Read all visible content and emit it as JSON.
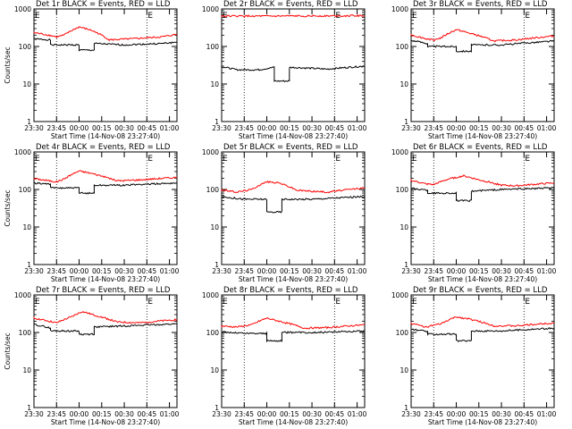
{
  "chart_data": [
    {
      "type": "line",
      "title": "Det 1r BLACK = Events, RED = LLD",
      "ylabel": "Counts/sec",
      "xlabel": "Start Time (14-Nov-08 23:27:40)",
      "x_ticks": [
        "23:30",
        "23:45",
        "00:00",
        "00:15",
        "00:30",
        "00:45",
        "01:00"
      ],
      "y_ticks": [
        "1",
        "10",
        "100",
        "1000"
      ],
      "markers": [
        {
          "label": "E",
          "t": "23:30"
        },
        {
          "label": "E",
          "t": "00:45"
        }
      ],
      "event_lines": [
        "23:45",
        "00:45"
      ],
      "yscale": "log",
      "ylim": [
        1,
        1000
      ],
      "series": [
        {
          "name": "BLACK = Events",
          "color": "#000000",
          "values": [
            [
              -2,
              160
            ],
            [
              11,
              150
            ],
            [
              11,
              110
            ],
            [
              30,
              110
            ],
            [
              30,
              80
            ],
            [
              40,
              80
            ],
            [
              40,
              120
            ],
            [
              60,
              110
            ],
            [
              85,
              120
            ],
            [
              95,
              130
            ]
          ]
        },
        {
          "name": "RED = LLD",
          "color": "#ff0000",
          "values": [
            [
              -2,
              240
            ],
            [
              10,
              200
            ],
            [
              15,
              180
            ],
            [
              20,
              200
            ],
            [
              30,
              330
            ],
            [
              38,
              270
            ],
            [
              50,
              150
            ],
            [
              65,
              160
            ],
            [
              85,
              180
            ],
            [
              95,
              210
            ]
          ]
        }
      ]
    },
    {
      "type": "line",
      "title": "Det 2r BLACK = Events, RED = LLD",
      "ylabel": "",
      "xlabel": "Start Time (14-Nov-08 23:27:40)",
      "x_ticks": [
        "23:30",
        "23:45",
        "00:00",
        "00:15",
        "00:30",
        "00:45",
        "01:00"
      ],
      "y_ticks": [
        "1",
        "10",
        "100",
        "1000"
      ],
      "markers": [
        {
          "label": "E",
          "t": "23:30"
        },
        {
          "label": "E",
          "t": "00:45"
        }
      ],
      "event_lines": [
        "23:45",
        "00:45"
      ],
      "yscale": "log",
      "ylim": [
        1,
        1000
      ],
      "series": [
        {
          "name": "BLACK = Events",
          "color": "#000000",
          "values": [
            [
              -2,
              30
            ],
            [
              10,
              24
            ],
            [
              25,
              24
            ],
            [
              35,
              28
            ],
            [
              35,
              12
            ],
            [
              45,
              12
            ],
            [
              45,
              28
            ],
            [
              70,
              25
            ],
            [
              95,
              30
            ]
          ]
        },
        {
          "name": "RED = LLD",
          "color": "#ff0000",
          "values": [
            [
              -2,
              650
            ],
            [
              30,
              640
            ],
            [
              60,
              650
            ],
            [
              95,
              660
            ]
          ]
        }
      ]
    },
    {
      "type": "line",
      "title": "Det 3r BLACK = Events, RED = LLD",
      "ylabel": "",
      "xlabel": "Start Time (14-Nov-08 23:27:40)",
      "x_ticks": [
        "23:30",
        "23:45",
        "00:00",
        "00:15",
        "00:30",
        "00:45",
        "01:00"
      ],
      "y_ticks": [
        "1",
        "10",
        "100",
        "1000"
      ],
      "markers": [
        {
          "label": "E",
          "t": "23:30"
        },
        {
          "label": "E",
          "t": "00:45"
        }
      ],
      "event_lines": [
        "23:45",
        "00:45"
      ],
      "yscale": "log",
      "ylim": [
        1,
        1000
      ],
      "series": [
        {
          "name": "BLACK = Events",
          "color": "#000000",
          "values": [
            [
              -2,
              150
            ],
            [
              11,
              120
            ],
            [
              11,
              100
            ],
            [
              30,
              100
            ],
            [
              30,
              75
            ],
            [
              40,
              75
            ],
            [
              40,
              110
            ],
            [
              60,
              110
            ],
            [
              95,
              140
            ]
          ]
        },
        {
          "name": "RED = LLD",
          "color": "#ff0000",
          "values": [
            [
              -2,
              210
            ],
            [
              10,
              160
            ],
            [
              15,
              150
            ],
            [
              20,
              170
            ],
            [
              30,
              280
            ],
            [
              38,
              230
            ],
            [
              55,
              140
            ],
            [
              70,
              150
            ],
            [
              95,
              190
            ]
          ]
        }
      ]
    },
    {
      "type": "line",
      "title": "Det 4r BLACK = Events, RED = LLD",
      "ylabel": "Counts/sec",
      "xlabel": "Start Time (14-Nov-08 23:27:40)",
      "x_ticks": [
        "23:30",
        "23:45",
        "00:00",
        "00:15",
        "00:30",
        "00:45",
        "01:00"
      ],
      "y_ticks": [
        "1",
        "10",
        "100",
        "1000"
      ],
      "markers": [
        {
          "label": "E",
          "t": "23:30"
        },
        {
          "label": "E",
          "t": "00:45"
        }
      ],
      "event_lines": [
        "23:45",
        "00:45"
      ],
      "yscale": "log",
      "ylim": [
        1,
        1000
      ],
      "series": [
        {
          "name": "BLACK = Events",
          "color": "#000000",
          "values": [
            [
              -2,
              150
            ],
            [
              11,
              140
            ],
            [
              11,
              110
            ],
            [
              30,
              110
            ],
            [
              30,
              80
            ],
            [
              40,
              80
            ],
            [
              40,
              130
            ],
            [
              60,
              130
            ],
            [
              95,
              150
            ]
          ]
        },
        {
          "name": "RED = LLD",
          "color": "#ff0000",
          "values": [
            [
              -2,
              200
            ],
            [
              10,
              170
            ],
            [
              15,
              160
            ],
            [
              20,
              190
            ],
            [
              30,
              310
            ],
            [
              38,
              270
            ],
            [
              55,
              170
            ],
            [
              70,
              180
            ],
            [
              95,
              210
            ]
          ]
        }
      ]
    },
    {
      "type": "line",
      "title": "Det 5r BLACK = Events, RED = LLD",
      "ylabel": "",
      "xlabel": "Start Time (14-Nov-08 23:27:40)",
      "x_ticks": [
        "23:30",
        "23:45",
        "00:00",
        "00:15",
        "00:30",
        "00:45",
        "01:00"
      ],
      "y_ticks": [
        "1",
        "10",
        "100",
        "1000"
      ],
      "markers": [
        {
          "label": "E",
          "t": "23:30"
        },
        {
          "label": "E",
          "t": "00:45"
        }
      ],
      "event_lines": [
        "23:45",
        "00:45"
      ],
      "yscale": "log",
      "ylim": [
        1,
        1000
      ],
      "series": [
        {
          "name": "BLACK = Events",
          "color": "#000000",
          "values": [
            [
              -2,
              65
            ],
            [
              15,
              55
            ],
            [
              30,
              55
            ],
            [
              30,
              25
            ],
            [
              40,
              25
            ],
            [
              40,
              55
            ],
            [
              60,
              55
            ],
            [
              95,
              65
            ]
          ]
        },
        {
          "name": "RED = LLD",
          "color": "#ff0000",
          "values": [
            [
              -2,
              100
            ],
            [
              10,
              85
            ],
            [
              20,
              100
            ],
            [
              30,
              160
            ],
            [
              38,
              150
            ],
            [
              50,
              95
            ],
            [
              70,
              85
            ],
            [
              95,
              110
            ]
          ]
        }
      ]
    },
    {
      "type": "line",
      "title": "Det 6r BLACK = Events, RED = LLD",
      "ylabel": "",
      "xlabel": "Start Time (14-Nov-08 23:27:40)",
      "x_ticks": [
        "23:30",
        "23:45",
        "00:00",
        "00:15",
        "00:30",
        "00:45",
        "01:00"
      ],
      "y_ticks": [
        "1",
        "10",
        "100",
        "1000"
      ],
      "markers": [
        {
          "label": "E",
          "t": "23:30"
        },
        {
          "label": "E",
          "t": "00:45"
        }
      ],
      "event_lines": [
        "23:45",
        "00:45"
      ],
      "yscale": "log",
      "ylim": [
        1,
        1000
      ],
      "series": [
        {
          "name": "BLACK = Events",
          "color": "#000000",
          "values": [
            [
              -2,
              110
            ],
            [
              11,
              95
            ],
            [
              11,
              80
            ],
            [
              30,
              80
            ],
            [
              30,
              50
            ],
            [
              40,
              50
            ],
            [
              40,
              90
            ],
            [
              60,
              100
            ],
            [
              95,
              110
            ]
          ]
        },
        {
          "name": "RED = LLD",
          "color": "#ff0000",
          "values": [
            [
              -2,
              180
            ],
            [
              10,
              140
            ],
            [
              15,
              135
            ],
            [
              25,
              190
            ],
            [
              35,
              230
            ],
            [
              45,
              180
            ],
            [
              60,
              130
            ],
            [
              70,
              125
            ],
            [
              95,
              150
            ]
          ]
        }
      ]
    },
    {
      "type": "line",
      "title": "Det 7r BLACK = Events, RED = LLD",
      "ylabel": "Counts/sec",
      "xlabel": "Start Time (14-Nov-08 23:27:40)",
      "x_ticks": [
        "23:30",
        "23:45",
        "00:00",
        "00:15",
        "00:30",
        "00:45",
        "01:00"
      ],
      "y_ticks": [
        "1",
        "10",
        "100",
        "1000"
      ],
      "markers": [
        {
          "label": "E",
          "t": "23:30"
        },
        {
          "label": "E",
          "t": "00:45"
        }
      ],
      "event_lines": [
        "23:45",
        "00:45"
      ],
      "yscale": "log",
      "ylim": [
        1,
        1000
      ],
      "series": [
        {
          "name": "BLACK = Events",
          "color": "#000000",
          "values": [
            [
              -2,
              170
            ],
            [
              11,
              130
            ],
            [
              11,
              110
            ],
            [
              30,
              110
            ],
            [
              30,
              90
            ],
            [
              40,
              90
            ],
            [
              40,
              140
            ],
            [
              60,
              150
            ],
            [
              95,
              170
            ]
          ]
        },
        {
          "name": "RED = LLD",
          "color": "#ff0000",
          "values": [
            [
              -2,
              250
            ],
            [
              10,
              200
            ],
            [
              15,
              180
            ],
            [
              25,
              260
            ],
            [
              32,
              360
            ],
            [
              40,
              290
            ],
            [
              55,
              190
            ],
            [
              70,
              180
            ],
            [
              95,
              220
            ]
          ]
        }
      ]
    },
    {
      "type": "line",
      "title": "Det 8r BLACK = Events, RED = LLD",
      "ylabel": "",
      "xlabel": "Start Time (14-Nov-08 23:27:40)",
      "x_ticks": [
        "23:30",
        "23:45",
        "00:00",
        "00:15",
        "00:30",
        "00:45",
        "01:00"
      ],
      "y_ticks": [
        "1",
        "10",
        "100",
        "1000"
      ],
      "markers": [
        {
          "label": "E",
          "t": "23:30"
        },
        {
          "label": "E",
          "t": "00:45"
        }
      ],
      "event_lines": [
        "23:45",
        "00:45"
      ],
      "yscale": "log",
      "ylim": [
        1,
        1000
      ],
      "series": [
        {
          "name": "BLACK = Events",
          "color": "#000000",
          "values": [
            [
              -2,
              105
            ],
            [
              15,
              95
            ],
            [
              30,
              95
            ],
            [
              30,
              60
            ],
            [
              40,
              60
            ],
            [
              40,
              100
            ],
            [
              60,
              100
            ],
            [
              95,
              110
            ]
          ]
        },
        {
          "name": "RED = LLD",
          "color": "#ff0000",
          "values": [
            [
              -2,
              150
            ],
            [
              10,
              140
            ],
            [
              20,
              160
            ],
            [
              30,
              240
            ],
            [
              38,
              200
            ],
            [
              55,
              130
            ],
            [
              70,
              135
            ],
            [
              95,
              160
            ]
          ]
        }
      ]
    },
    {
      "type": "line",
      "title": "Det 9r BLACK = Events, RED = LLD",
      "ylabel": "",
      "xlabel": "Start Time (14-Nov-08 23:27:40)",
      "x_ticks": [
        "23:30",
        "23:45",
        "00:00",
        "00:15",
        "00:30",
        "00:45",
        "01:00"
      ],
      "y_ticks": [
        "1",
        "10",
        "100",
        "1000"
      ],
      "markers": [
        {
          "label": "E",
          "t": "23:30"
        },
        {
          "label": "E",
          "t": "00:45"
        }
      ],
      "event_lines": [
        "23:45",
        "00:45"
      ],
      "yscale": "log",
      "ylim": [
        1,
        1000
      ],
      "series": [
        {
          "name": "BLACK = Events",
          "color": "#000000",
          "values": [
            [
              -2,
              125
            ],
            [
              11,
              105
            ],
            [
              11,
              90
            ],
            [
              30,
              90
            ],
            [
              30,
              60
            ],
            [
              40,
              60
            ],
            [
              40,
              110
            ],
            [
              60,
              110
            ],
            [
              95,
              130
            ]
          ]
        },
        {
          "name": "RED = LLD",
          "color": "#ff0000",
          "values": [
            [
              -2,
              180
            ],
            [
              10,
              140
            ],
            [
              20,
              170
            ],
            [
              30,
              260
            ],
            [
              38,
              230
            ],
            [
              55,
              150
            ],
            [
              70,
              150
            ],
            [
              95,
              180
            ]
          ]
        }
      ]
    }
  ]
}
